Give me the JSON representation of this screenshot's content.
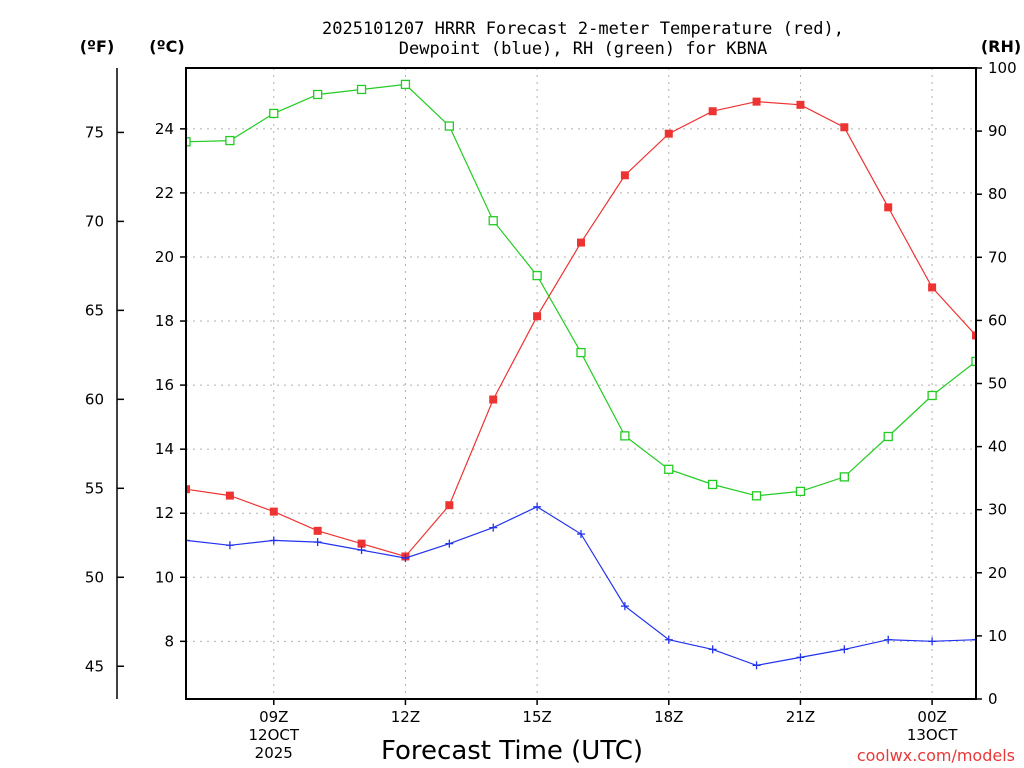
{
  "chart_data": {
    "type": "line",
    "title_line1": "2025101207 HRRR Forecast 2-meter Temperature (red),",
    "title_line2": "Dewpoint (blue), RH (green) for KBNA",
    "xlabel": "Forecast Time (UTC)",
    "watermark": "coolwx.com/models",
    "unit_f": "(ºF)",
    "unit_c": "(ºC)",
    "unit_rh": "(RH)",
    "hours": [
      7,
      8,
      9,
      10,
      11,
      12,
      13,
      14,
      15,
      16,
      17,
      18,
      19,
      20,
      21,
      22,
      23,
      24,
      25
    ],
    "x_ticks": [
      {
        "hour": 9,
        "label": "09Z",
        "sub1": "12OCT",
        "sub2": "2025"
      },
      {
        "hour": 12,
        "label": "12Z",
        "sub1": "",
        "sub2": ""
      },
      {
        "hour": 15,
        "label": "15Z",
        "sub1": "",
        "sub2": ""
      },
      {
        "hour": 18,
        "label": "18Z",
        "sub1": "",
        "sub2": ""
      },
      {
        "hour": 21,
        "label": "21Z",
        "sub1": "",
        "sub2": ""
      },
      {
        "hour": 24,
        "label": "00Z",
        "sub1": "13OCT",
        "sub2": ""
      }
    ],
    "xlim": [
      7,
      25
    ],
    "celsius_lim": [
      6.2,
      25.9
    ],
    "celsius_ticks": [
      "8",
      "10",
      "12",
      "14",
      "16",
      "18",
      "20",
      "22",
      "24"
    ],
    "fahrenheit_ticks": [
      "45",
      "50",
      "55",
      "60",
      "65",
      "70",
      "75"
    ],
    "rh_lim": [
      0,
      100
    ],
    "rh_ticks": [
      "0",
      "10",
      "20",
      "30",
      "40",
      "50",
      "60",
      "70",
      "80",
      "90",
      "100"
    ],
    "series": [
      {
        "name": "Temperature",
        "color": "#ee3333",
        "marker": "filled-square",
        "values": [
          12.75,
          12.55,
          12.05,
          11.45,
          11.05,
          10.65,
          12.25,
          15.55,
          18.15,
          20.45,
          22.55,
          23.85,
          24.55,
          24.85,
          24.75,
          24.05,
          21.55,
          19.05,
          17.55
        ]
      },
      {
        "name": "Dewpoint",
        "color": "#2233ee",
        "marker": "plus",
        "values": [
          11.15,
          11.0,
          11.15,
          11.1,
          10.85,
          10.6,
          11.05,
          11.55,
          12.2,
          11.35,
          9.1,
          8.05,
          7.75,
          7.25,
          7.5,
          7.75,
          8.05,
          8.0,
          8.05
        ]
      },
      {
        "name": "RH",
        "color": "#22cc22",
        "marker": "open-square",
        "values": [
          88.3,
          88.5,
          92.8,
          95.8,
          96.6,
          97.4,
          90.8,
          75.8,
          67.1,
          54.9,
          41.7,
          36.4,
          34.0,
          32.2,
          32.9,
          35.2,
          41.6,
          48.1,
          53.5
        ]
      }
    ]
  }
}
